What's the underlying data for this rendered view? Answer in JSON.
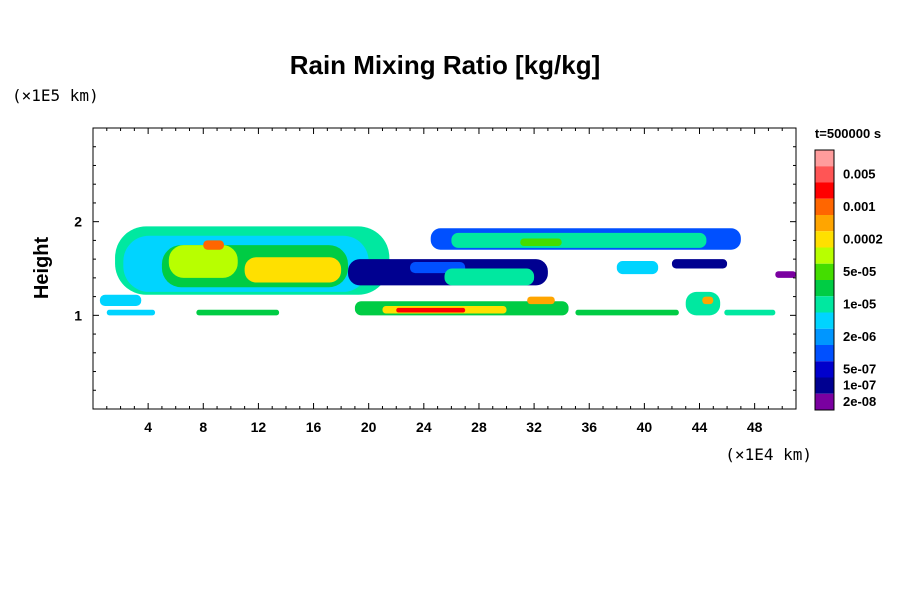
{
  "chart_data": {
    "type": "heatmap",
    "title": "Rain Mixing Ratio [kg/kg]",
    "ylabel": "Height",
    "xlabel": "",
    "x_unit": "(×1E4 km)",
    "y_unit": "(×1E5 km)",
    "time_label": "t=500000 s",
    "xlim": [
      0,
      51
    ],
    "ylim": [
      0,
      3
    ],
    "x_ticks": [
      4,
      8,
      12,
      16,
      20,
      24,
      28,
      32,
      36,
      40,
      44,
      48
    ],
    "y_ticks": [
      1,
      2
    ],
    "colorbar": {
      "levels": [
        "0.005",
        "0.001",
        "0.0002",
        "5e-05",
        "1e-05",
        "2e-06",
        "5e-07",
        "1e-07",
        "2e-08"
      ],
      "colors": [
        "#ff9c9c",
        "#ff5555",
        "#ff0000",
        "#ff6600",
        "#ffa500",
        "#ffe000",
        "#b8ff00",
        "#44dd00",
        "#00cc44",
        "#00e8a0",
        "#00d4ff",
        "#0096ff",
        "#0050ff",
        "#0000cc",
        "#000090",
        "#7a00a0"
      ]
    },
    "regions": [
      {
        "x": [
          1.6,
          21.5
        ],
        "y": [
          1.22,
          1.95
        ],
        "level": 9
      },
      {
        "x": [
          2.2,
          20.0
        ],
        "y": [
          1.25,
          1.85
        ],
        "level": 10
      },
      {
        "x": [
          5.0,
          18.5
        ],
        "y": [
          1.3,
          1.75
        ],
        "level": 8
      },
      {
        "x": [
          5.5,
          10.5
        ],
        "y": [
          1.4,
          1.75
        ],
        "level": 6
      },
      {
        "x": [
          11.0,
          18.0
        ],
        "y": [
          1.35,
          1.62
        ],
        "level": 5
      },
      {
        "x": [
          8.0,
          9.5
        ],
        "y": [
          1.7,
          1.8
        ],
        "level": 3
      },
      {
        "x": [
          0.5,
          3.5
        ],
        "y": [
          1.1,
          1.22
        ],
        "level": 10
      },
      {
        "x": [
          18.5,
          33.0
        ],
        "y": [
          1.32,
          1.6
        ],
        "level": 14
      },
      {
        "x": [
          23.0,
          27.0
        ],
        "y": [
          1.45,
          1.57
        ],
        "level": 12
      },
      {
        "x": [
          25.5,
          32.0
        ],
        "y": [
          1.32,
          1.5
        ],
        "level": 9
      },
      {
        "x": [
          24.5,
          47.0
        ],
        "y": [
          1.7,
          1.93
        ],
        "level": 12
      },
      {
        "x": [
          26.0,
          44.5
        ],
        "y": [
          1.72,
          1.88
        ],
        "level": 9
      },
      {
        "x": [
          31.0,
          34.0
        ],
        "y": [
          1.74,
          1.82
        ],
        "level": 7
      },
      {
        "x": [
          38.0,
          41.0
        ],
        "y": [
          1.44,
          1.58
        ],
        "level": 10
      },
      {
        "x": [
          42.0,
          46.0
        ],
        "y": [
          1.5,
          1.6
        ],
        "level": 14
      },
      {
        "x": [
          49.5,
          51.0
        ],
        "y": [
          1.4,
          1.47
        ],
        "level": 15
      },
      {
        "x": [
          19.0,
          34.5
        ],
        "y": [
          1.0,
          1.15
        ],
        "level": 8
      },
      {
        "x": [
          21.0,
          30.0
        ],
        "y": [
          1.02,
          1.1
        ],
        "level": 5
      },
      {
        "x": [
          22.0,
          27.0
        ],
        "y": [
          1.03,
          1.08
        ],
        "level": 2
      },
      {
        "x": [
          31.5,
          33.5
        ],
        "y": [
          1.12,
          1.2
        ],
        "level": 4
      },
      {
        "x": [
          1.0,
          4.5
        ],
        "y": [
          1.0,
          1.06
        ],
        "level": 10
      },
      {
        "x": [
          7.5,
          13.5
        ],
        "y": [
          1.0,
          1.06
        ],
        "level": 8
      },
      {
        "x": [
          35.0,
          42.5
        ],
        "y": [
          1.0,
          1.06
        ],
        "level": 8
      },
      {
        "x": [
          43.0,
          45.5
        ],
        "y": [
          1.0,
          1.25
        ],
        "level": 9
      },
      {
        "x": [
          44.2,
          45.0
        ],
        "y": [
          1.12,
          1.2
        ],
        "level": 4
      },
      {
        "x": [
          45.8,
          49.5
        ],
        "y": [
          1.0,
          1.06
        ],
        "level": 9
      }
    ]
  }
}
